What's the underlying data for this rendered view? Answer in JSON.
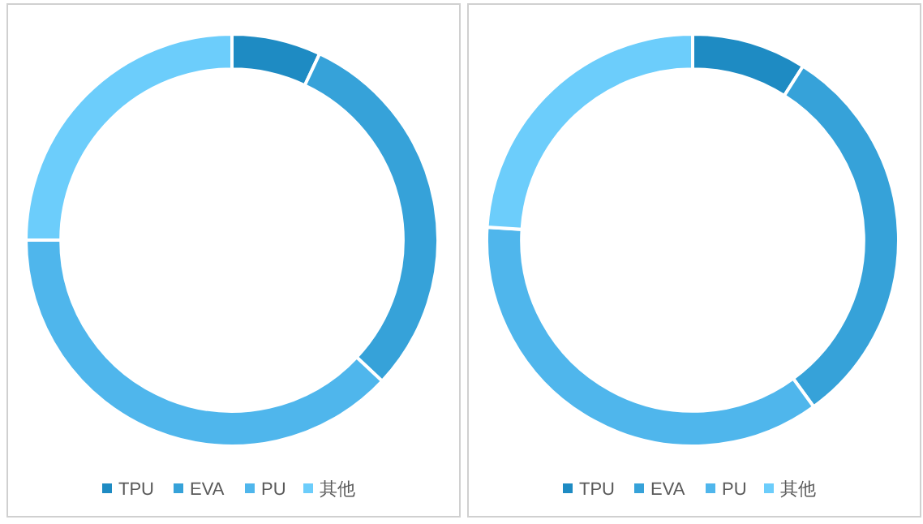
{
  "chart_data": [
    {
      "type": "donut",
      "categories": [
        "TPU",
        "EVA",
        "PU",
        "其他"
      ],
      "values": [
        7,
        30,
        38,
        25
      ],
      "colors": [
        "#1e8bc3",
        "#36a2d9",
        "#4fb6ec",
        "#6ccdfb"
      ],
      "legend": "bottom"
    },
    {
      "type": "donut",
      "categories": [
        "TPU",
        "EVA",
        "PU",
        "其他"
      ],
      "values": [
        9,
        31,
        36,
        24
      ],
      "colors": [
        "#1e8bc3",
        "#36a2d9",
        "#4fb6ec",
        "#6ccdfb"
      ],
      "legend": "bottom"
    }
  ]
}
